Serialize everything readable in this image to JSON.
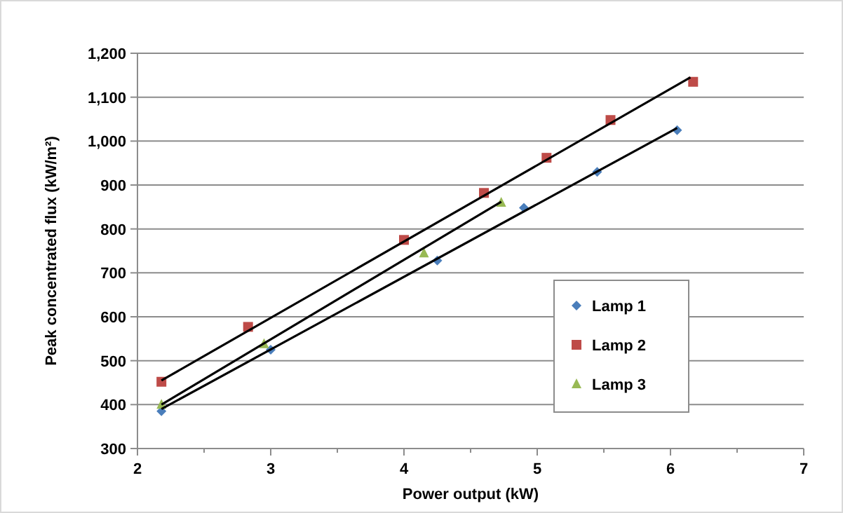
{
  "chart_data": {
    "type": "scatter",
    "xlabel": "Power output (kW)",
    "ylabel": "Peak concentrated flux (kW/m²)",
    "xlim": [
      2,
      7
    ],
    "xticks": [
      2,
      3,
      4,
      5,
      6,
      7
    ],
    "ylim": [
      300,
      1200
    ],
    "yticks": [
      300,
      400,
      500,
      600,
      700,
      800,
      900,
      {
        "value": 1000,
        "label": "1,000"
      },
      {
        "value": 1100,
        "label": "1,100"
      },
      {
        "value": 1200,
        "label": "1,200"
      }
    ],
    "grid": "y",
    "legend": "right",
    "series": [
      {
        "name": "Lamp 1",
        "color": "#4a7ebb",
        "marker": "diamond",
        "x": [
          2.18,
          3.0,
          4.25,
          4.9,
          5.45,
          6.05
        ],
        "values": [
          385,
          525,
          728,
          848,
          930,
          1025
        ]
      },
      {
        "name": "Lamp 2",
        "color": "#be4b48",
        "marker": "square",
        "x": [
          2.18,
          2.83,
          4.0,
          4.6,
          5.07,
          5.55,
          6.17
        ],
        "values": [
          452,
          577,
          775,
          882,
          962,
          1048,
          1135
        ]
      },
      {
        "name": "Lamp 3",
        "color": "#98b954",
        "marker": "triangle",
        "x": [
          2.18,
          2.95,
          4.15,
          4.73
        ],
        "values": [
          400,
          538,
          745,
          860
        ]
      },
      {
        "type": "line",
        "color": "#000000",
        "marker": "none",
        "x": [
          2.18,
          6.05
        ],
        "values": [
          390,
          1030
        ]
      },
      {
        "type": "line",
        "color": "#000000",
        "marker": "none",
        "x": [
          2.18,
          6.15
        ],
        "values": [
          455,
          1145
        ]
      },
      {
        "type": "line",
        "color": "#000000",
        "marker": "none",
        "x": [
          2.18,
          4.73
        ],
        "values": [
          400,
          862
        ]
      }
    ]
  }
}
